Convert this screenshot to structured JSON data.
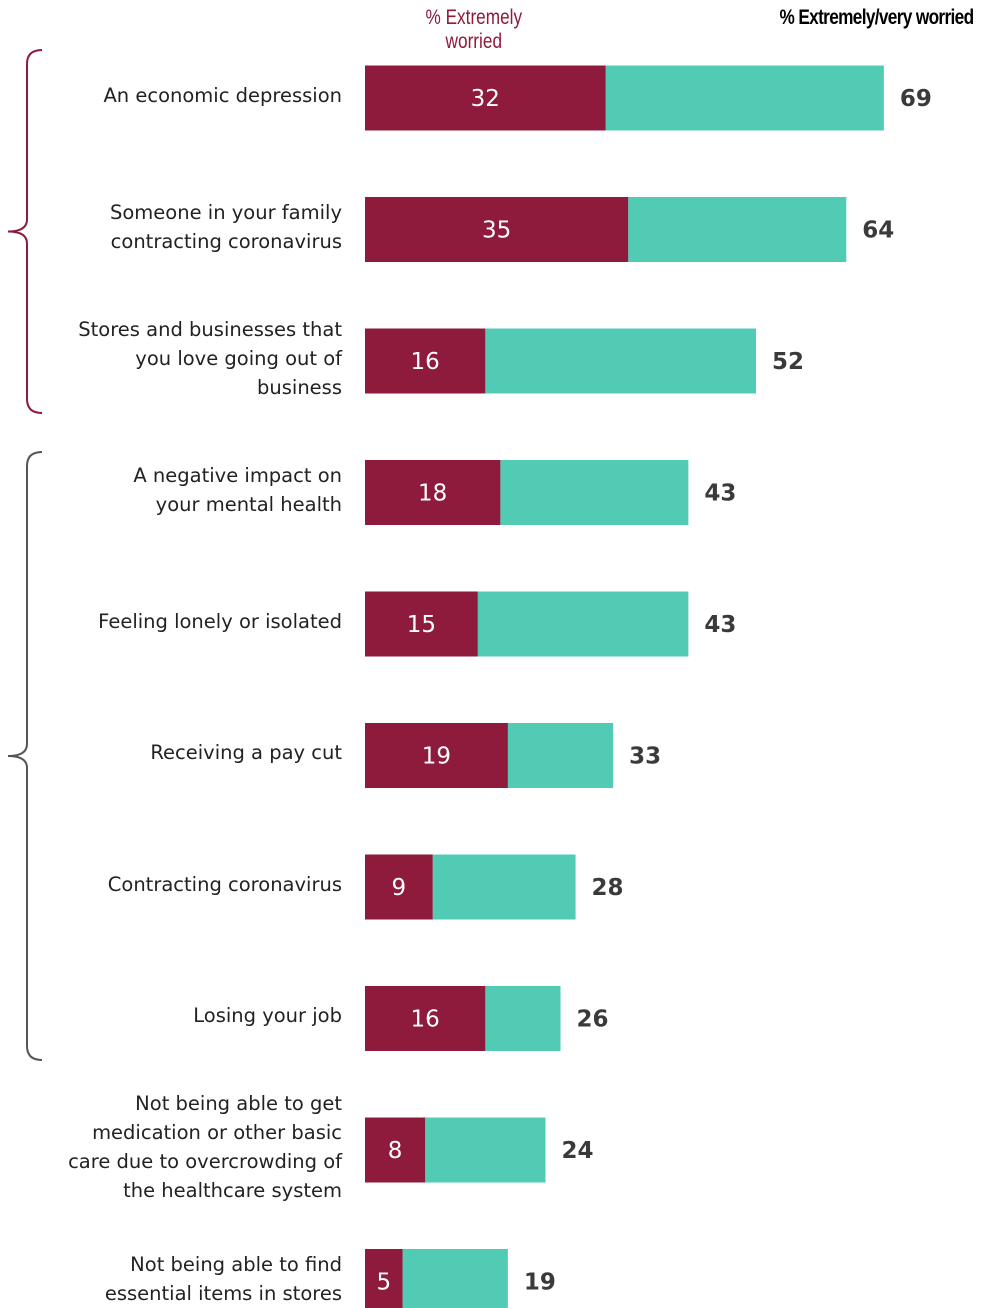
{
  "legend": {
    "extremely": "% Extremely worried",
    "extremely_very": "% Extremely/very worried"
  },
  "colors": {
    "extremely": "#8e1b3b",
    "very": "#52cbb5",
    "bracket1": "#8e1b3b",
    "bracket2": "#555555",
    "total_text": "#3a3a3a"
  },
  "chart_data": {
    "type": "bar",
    "orientation": "horizontal",
    "stacked": true,
    "categories": [
      "An economic depression",
      "Someone in your family contracting coronavirus",
      "Stores and businesses that you love going out of business",
      "A negative impact on your mental health",
      "Feeling lonely or isolated",
      "Receiving a pay cut",
      "Contracting coronavirus",
      "Losing your job",
      "Not being able to get medication or other basic care due to overcrowding of the healthcare system",
      "Not being able to find essential items in stores"
    ],
    "category_lines": [
      [
        "An economic depression"
      ],
      [
        "Someone in your family",
        "contracting coronavirus"
      ],
      [
        "Stores and businesses that",
        "you love going out of",
        "business"
      ],
      [
        "A negative impact on",
        "your mental health"
      ],
      [
        "Feeling lonely or isolated"
      ],
      [
        "Receiving a pay cut"
      ],
      [
        "Contracting coronavirus"
      ],
      [
        "Losing your job"
      ],
      [
        "Not being able to get",
        "medication or other basic",
        "care due to overcrowding of",
        "the healthcare system"
      ],
      [
        "Not being able to find",
        "essential items in stores"
      ]
    ],
    "series": [
      {
        "name": "% Extremely worried",
        "values": [
          32,
          35,
          16,
          18,
          15,
          19,
          9,
          16,
          8,
          5
        ]
      },
      {
        "name": "% Extremely/very worried",
        "values": [
          69,
          64,
          52,
          43,
          43,
          33,
          28,
          26,
          24,
          19
        ]
      }
    ],
    "xlim": [
      0,
      100
    ],
    "groups": [
      {
        "from": 0,
        "to": 2
      },
      {
        "from": 3,
        "to": 7
      }
    ],
    "grid": false,
    "legend_position": "top"
  }
}
